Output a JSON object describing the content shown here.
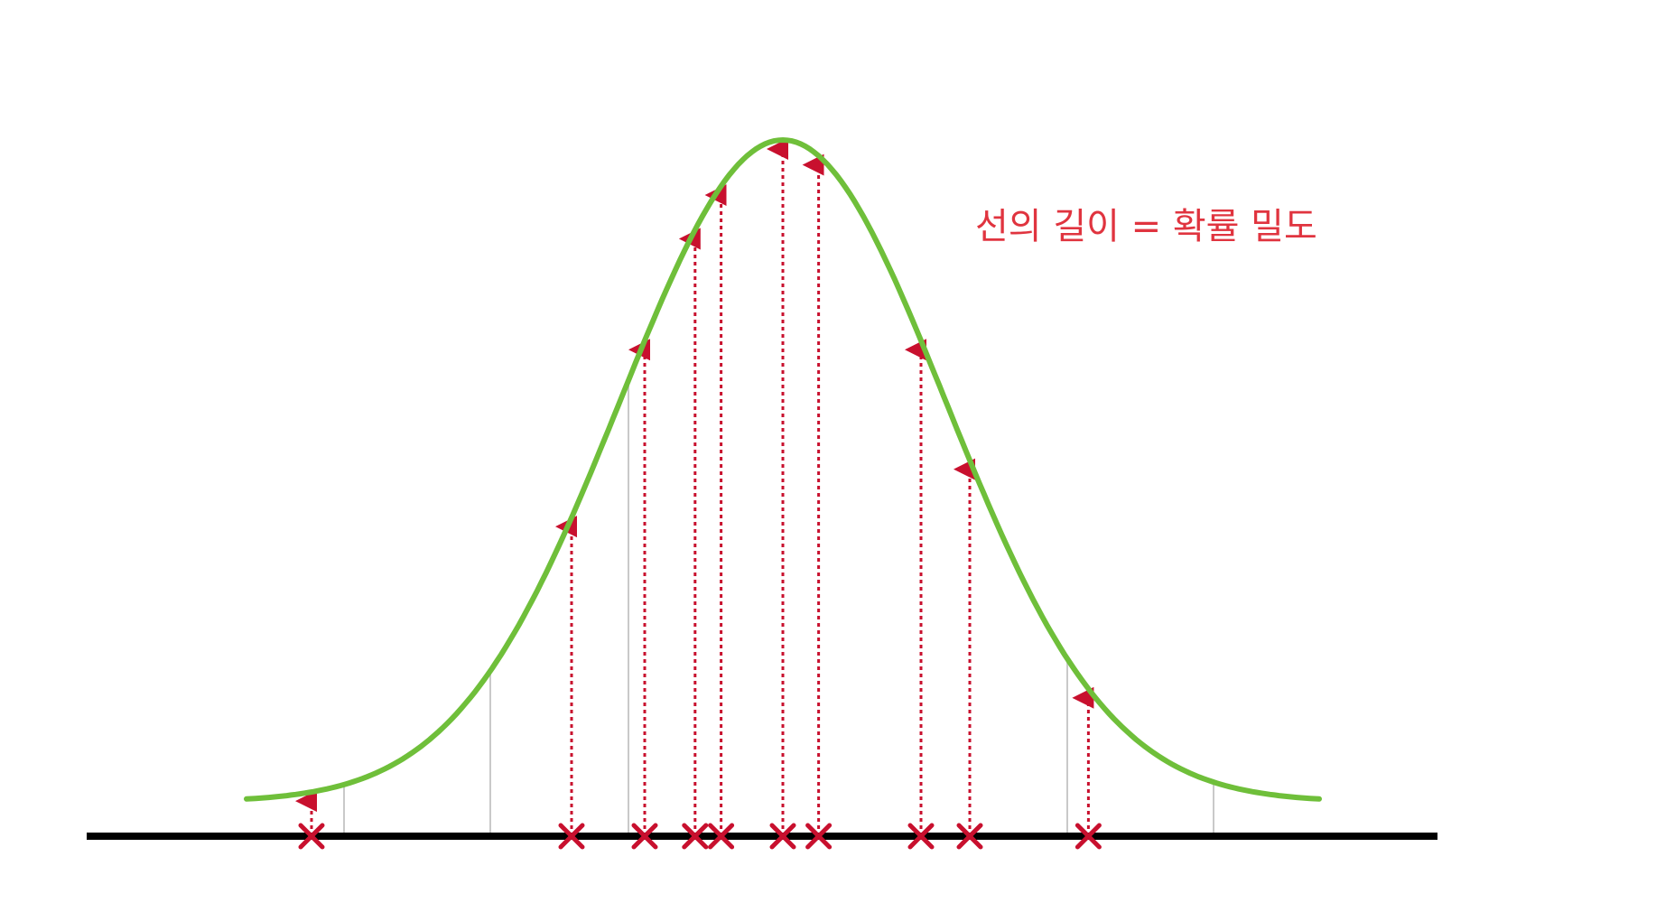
{
  "annotation": "선의 길이 = 확률 밀도",
  "colors": {
    "curve": "#6fbf3a",
    "axis": "#000000",
    "arrows": "#c8102e",
    "annotation": "#e0343f",
    "guides": "#c9c9c9"
  },
  "icons": {
    "sample_marker": "x-mark-icon",
    "arrow_head": "arrow-up-icon"
  },
  "chart_data": {
    "type": "line",
    "curve": "normal-density",
    "mean": 0,
    "sd": 1,
    "x_range": [
      -3.3,
      3.3
    ],
    "samples": [
      -2.9,
      -1.3,
      -0.85,
      -0.54,
      -0.38,
      0,
      0.22,
      0.85,
      1.15,
      1.88
    ],
    "guide_lines_x": [
      -2.7,
      -1.8,
      -0.95,
      1.75,
      2.65
    ]
  }
}
